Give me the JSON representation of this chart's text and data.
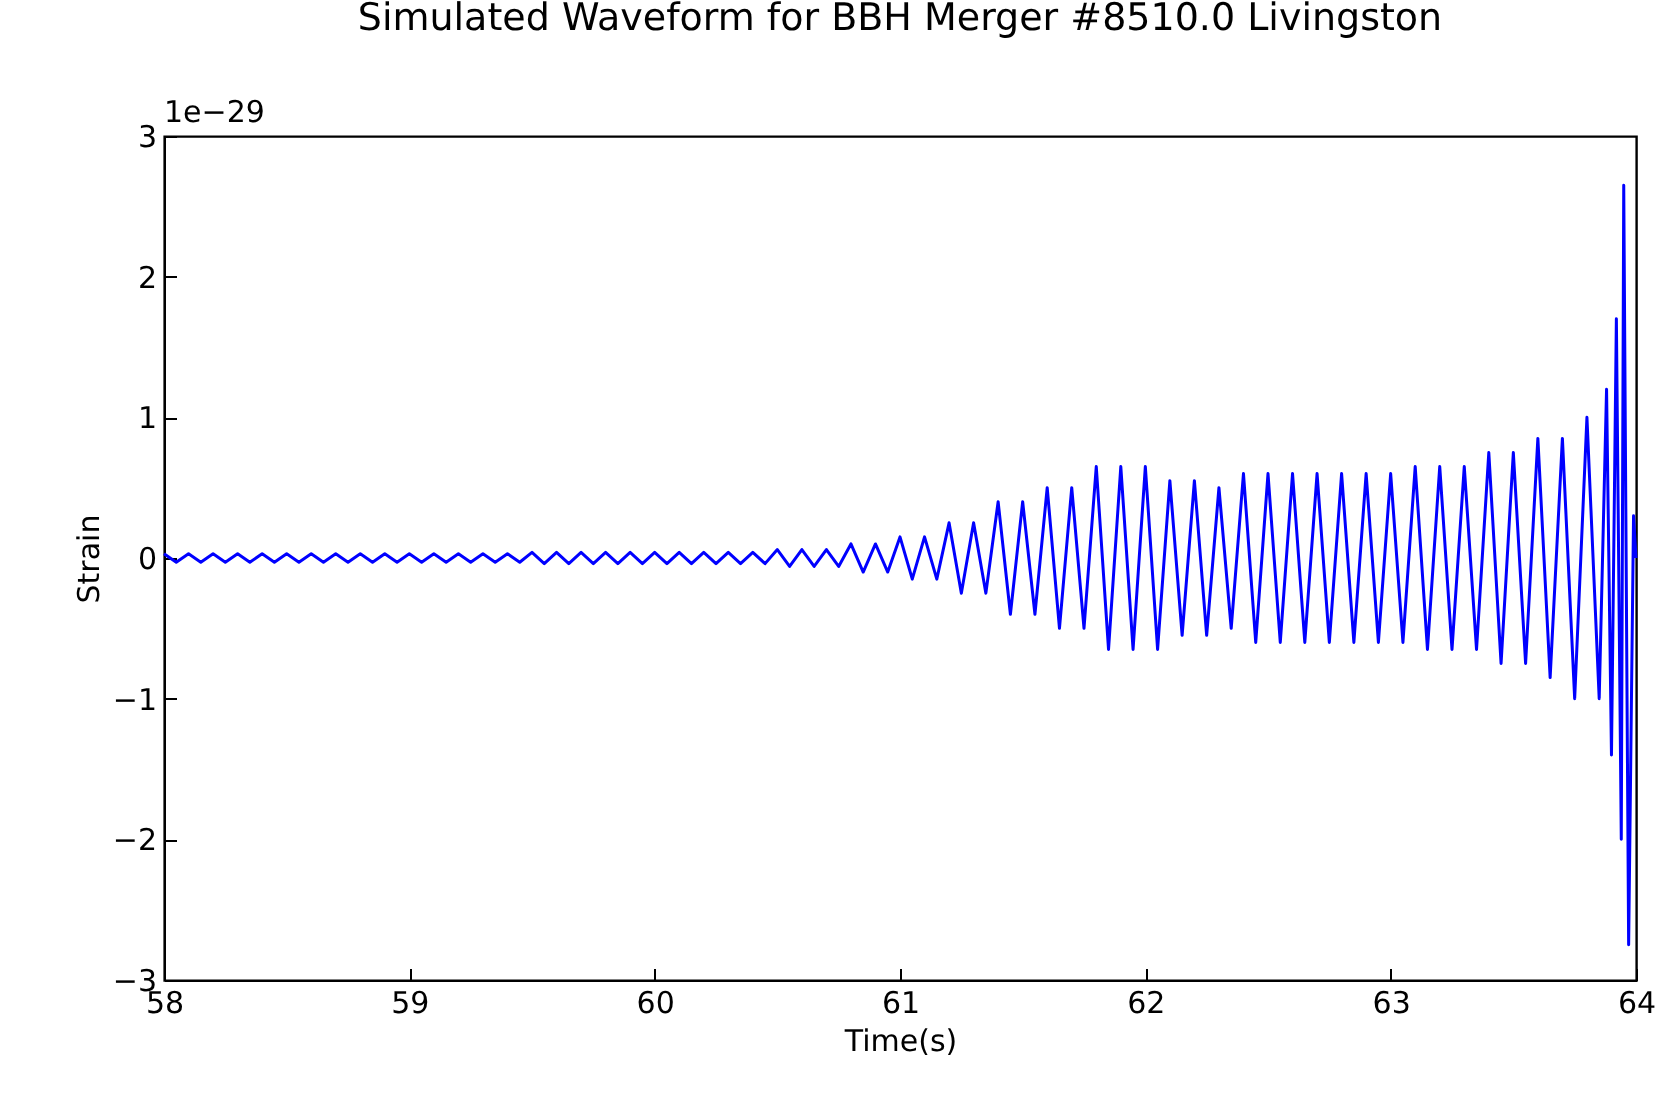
{
  "chart_data": {
    "type": "line",
    "title": "Simulated Waveform for BBH Merger #8510.0 Livingston",
    "xlabel": "Time(s)",
    "ylabel": "Strain",
    "annotations": [
      "1e−29"
    ],
    "color": "#0000ff",
    "xlim": [
      58,
      64
    ],
    "xticks": [
      58,
      59,
      60,
      61,
      62,
      63,
      64
    ],
    "ylim": [
      -3,
      3
    ],
    "yticks": [
      -3,
      -2,
      -1,
      0,
      1,
      2,
      3
    ],
    "x": [
      58,
      58.05,
      58.1,
      58.15,
      58.2,
      58.25,
      58.3,
      58.35,
      58.4,
      58.45,
      58.5,
      58.55,
      58.6,
      58.65,
      58.7,
      58.75,
      58.8,
      58.85,
      58.9,
      58.95,
      59,
      59.05,
      59.1,
      59.15,
      59.2,
      59.25,
      59.3,
      59.35,
      59.4,
      59.45,
      59.5,
      59.55,
      59.6,
      59.65,
      59.7,
      59.75,
      59.8,
      59.85,
      59.9,
      59.95,
      60,
      60.05,
      60.1,
      60.15,
      60.2,
      60.25,
      60.3,
      60.35,
      60.4,
      60.45,
      60.5,
      60.55,
      60.6,
      60.65,
      60.7,
      60.75,
      60.8,
      60.85,
      60.9,
      60.95,
      61,
      61.05,
      61.1,
      61.15,
      61.2,
      61.25,
      61.3,
      61.35,
      61.4,
      61.45,
      61.5,
      61.55,
      61.6,
      61.65,
      61.7,
      61.75,
      61.8,
      61.85,
      61.9,
      61.95,
      62,
      62.05,
      62.1,
      62.15,
      62.2,
      62.25,
      62.3,
      62.35,
      62.4,
      62.45,
      62.5,
      62.55,
      62.6,
      62.65,
      62.7,
      62.75,
      62.8,
      62.85,
      62.9,
      62.95,
      63,
      63.05,
      63.1,
      63.15,
      63.2,
      63.25,
      63.3,
      63.35,
      63.4,
      63.45,
      63.5,
      63.55,
      63.6,
      63.65,
      63.7,
      63.75,
      63.8,
      63.85,
      63.88,
      63.9,
      63.92,
      63.94,
      63.95,
      63.97,
      63.99,
      64
    ],
    "values": [
      0.03,
      -0.03,
      0.03,
      -0.03,
      0.03,
      -0.03,
      0.03,
      -0.03,
      0.03,
      -0.03,
      0.03,
      -0.03,
      0.03,
      -0.03,
      0.03,
      -0.03,
      0.03,
      -0.03,
      0.03,
      -0.03,
      0.03,
      -0.03,
      0.03,
      -0.03,
      0.03,
      -0.03,
      0.03,
      -0.03,
      0.03,
      -0.03,
      0.04,
      -0.04,
      0.04,
      -0.04,
      0.04,
      -0.04,
      0.04,
      -0.04,
      0.04,
      -0.04,
      0.04,
      -0.04,
      0.04,
      -0.04,
      0.04,
      -0.04,
      0.04,
      -0.04,
      0.04,
      -0.04,
      0.06,
      -0.06,
      0.06,
      -0.06,
      0.06,
      -0.06,
      0.1,
      -0.1,
      0.1,
      -0.1,
      0.15,
      -0.15,
      0.15,
      -0.15,
      0.25,
      -0.25,
      0.25,
      -0.25,
      0.4,
      -0.4,
      0.4,
      -0.4,
      0.5,
      -0.5,
      0.5,
      -0.5,
      0.65,
      -0.65,
      0.65,
      -0.65,
      0.65,
      -0.65,
      0.55,
      -0.55,
      0.55,
      -0.55,
      0.5,
      -0.5,
      0.6,
      -0.6,
      0.6,
      -0.6,
      0.6,
      -0.6,
      0.6,
      -0.6,
      0.6,
      -0.6,
      0.6,
      -0.6,
      0.6,
      -0.6,
      0.65,
      -0.65,
      0.65,
      -0.65,
      0.65,
      -0.65,
      0.75,
      -0.75,
      0.75,
      -0.75,
      0.85,
      -0.85,
      0.85,
      -1,
      1,
      -1,
      1.2,
      -1.4,
      1.7,
      -2,
      2.65,
      -2.75,
      0.3,
      0
    ]
  }
}
